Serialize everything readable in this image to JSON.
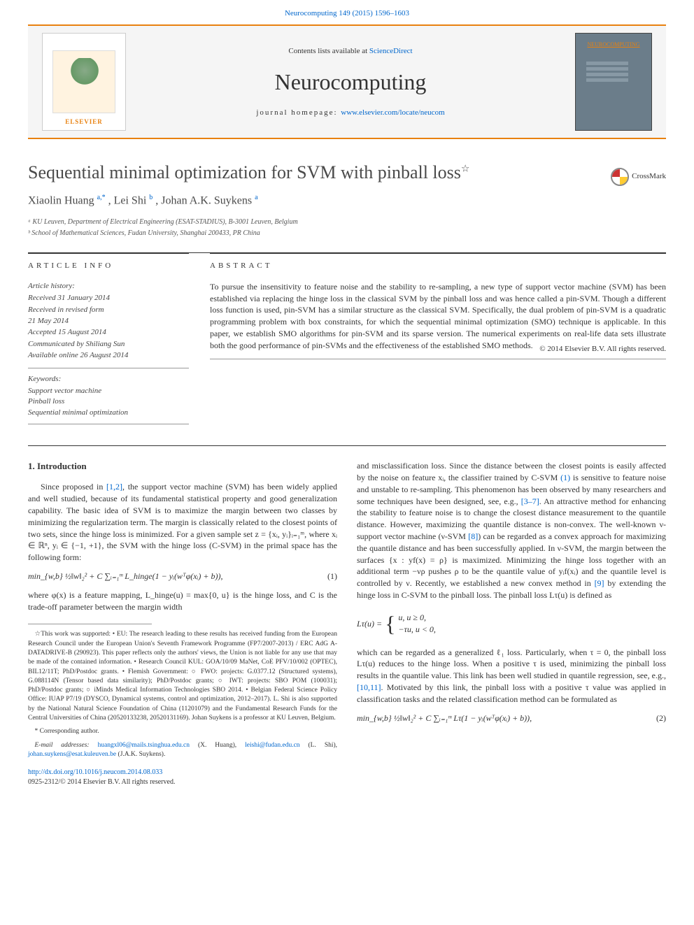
{
  "header_citation": "Neurocomputing 149 (2015) 1596–1603",
  "banner": {
    "contents_prefix": "Contents lists available at ",
    "contents_link": "ScienceDirect",
    "journal": "Neurocomputing",
    "home_label": "journal homepage: ",
    "home_url": "www.elsevier.com/locate/neucom",
    "publisher": "ELSEVIER",
    "cover_label": "NEUROCOMPUTING"
  },
  "title": "Sequential minimal optimization for SVM with pinball loss",
  "title_star": "☆",
  "crossmark": "CrossMark",
  "authors": {
    "a1_name": "Xiaolin Huang",
    "a1_sup": "a,*",
    "a2_name": "Lei Shi",
    "a2_sup": "b",
    "a3_name": "Johan A.K. Suykens",
    "a3_sup": "a"
  },
  "affiliations": {
    "a": "ᵃ KU Leuven, Department of Electrical Engineering (ESAT-STADIUS), B-3001 Leuven, Belgium",
    "b": "ᵇ School of Mathematical Sciences, Fudan University, Shanghai 200433, PR China"
  },
  "article_info_label": "article info",
  "history": {
    "hdr": "Article history:",
    "l1": "Received 31 January 2014",
    "l2": "Received in revised form",
    "l3": "21 May 2014",
    "l4": "Accepted 15 August 2014",
    "l5": "Communicated by Shiliang Sun",
    "l6": "Available online 26 August 2014"
  },
  "keywords": {
    "hdr": "Keywords:",
    "k1": "Support vector machine",
    "k2": "Pinball loss",
    "k3": "Sequential minimal optimization"
  },
  "abstract_label": "abstract",
  "abstract_text": "To pursue the insensitivity to feature noise and the stability to re-sampling, a new type of support vector machine (SVM) has been established via replacing the hinge loss in the classical SVM by the pinball loss and was hence called a pin-SVM. Though a different loss function is used, pin-SVM has a similar structure as the classical SVM. Specifically, the dual problem of pin-SVM is a quadratic programming problem with box constraints, for which the sequential minimal optimization (SMO) technique is applicable. In this paper, we establish SMO algorithms for pin-SVM and its sparse version. The numerical experiments on real-life data sets illustrate both the good performance of pin-SVMs and the effectiveness of the established SMO methods.",
  "copyright": "© 2014 Elsevier B.V. All rights reserved.",
  "intro_heading": "1. Introduction",
  "intro": {
    "p1a": "Since proposed in ",
    "r12": "[1,2]",
    "p1b": ", the support vector machine (SVM) has been widely applied and well studied, because of its fundamental statistical property and good generalization capability. The basic idea of SVM is to maximize the margin between two classes by minimizing the regularization term. The margin is classically related to the closest points of two sets, since the hinge loss is minimized. For a given sample set z = {xᵢ, yᵢ}ᵢ₌₁ᵐ, where xᵢ ∈ ℝⁿ, yᵢ ∈ {−1, +1}, the SVM with the hinge loss (C-SVM) in the primal space has the following form:",
    "eq1": "min_{w,b} ½‖w‖₂² + C ∑ᵢ₌₁ᵐ L_hinge(1 − yᵢ(wᵀφ(xᵢ) + b)),",
    "eq1_num": "(1)",
    "p2": "where φ(x) is a feature mapping, L_hinge(u) = max{0, u} is the hinge loss, and C is the trade-off parameter between the margin width",
    "p3a": "and misclassification loss. Since the distance between the closest points is easily affected by the noise on feature xᵢ, the classifier trained by C-SVM ",
    "r_eq1": "(1)",
    "p3b": " is sensitive to feature noise and unstable to re-sampling. This phenomenon has been observed by many researchers and some techniques have been designed, see, e.g., ",
    "r37": "[3–7]",
    "p3c": ". An attractive method for enhancing the stability to feature noise is to change the closest distance measurement to the quantile distance. However, maximizing the quantile distance is non-convex. The well-known ν-support vector machine (ν-SVM ",
    "r8": "[8]",
    "p3d": ") can be regarded as a convex approach for maximizing the quantile distance and has been successfully applied. In ν-SVM, the margin between the surfaces {x : yf(x) = ρ} is maximized. Minimizing the hinge loss together with an additional term −νρ pushes ρ to be the quantile value of yᵢf(xᵢ) and the quantile level is controlled by ν. Recently, we established a new convex method in ",
    "r9": "[9]",
    "p3e": " by extending the hinge loss in C-SVM to the pinball loss. The pinball loss Lτ(u) is defined as",
    "pinball_lhs": "Lτ(u) = ",
    "pinball_c1": "u,       u ≥ 0,",
    "pinball_c2": "−τu,   u < 0,",
    "p4a": "which can be regarded as a generalized ℓ₁ loss. Particularly, when τ = 0, the pinball loss Lτ(u) reduces to the hinge loss. When a positive τ is used, minimizing the pinball loss results in the quantile value. This link has been well studied in quantile regression, see, e.g., ",
    "r1011": "[10,11]",
    "p4b": ". Motivated by this link, the pinball loss with a positive τ value was applied in classification tasks and the related classification method can be formulated as",
    "eq2": "min_{w,b} ½‖w‖₂² + C ∑ᵢ₌₁ᵐ Lτ(1 − yᵢ(wᵀφ(xᵢ) + b)),",
    "eq2_num": "(2)"
  },
  "footnotes": {
    "funding": "☆This work was supported: • EU: The research leading to these results has received funding from the European Research Council under the European Union's Seventh Framework Programme (FP7/2007-2013) / ERC AdG A-DATADRIVE-B (290923). This paper reflects only the authors' views, the Union is not liable for any use that may be made of the contained information. • Research Council KUL: GOA/10/09 MaNet, CoE PFV/10/002 (OPTEC), BIL12/11T; PhD/Postdoc grants. • Flemish Government: ○ FWO: projects: G.0377.12 (Structured systems), G.088114N (Tensor based data similarity); PhD/Postdoc grants; ○ IWT: projects: SBO POM (100031); PhD/Postdoc grants; ○ iMinds Medical Information Technologies SBO 2014. • Belgian Federal Science Policy Office: IUAP P7/19 (DYSCO, Dynamical systems, control and optimization, 2012–2017). L. Shi is also supported by the National Natural Science Foundation of China (11201079) and the Fundamental Research Funds for the Central Universities of China (20520133238, 20520131169). Johan Suykens is a professor at KU Leuven, Belgium.",
    "corr": "* Corresponding author.",
    "emails_label": "E-mail addresses: ",
    "e1": "huangxl06@mails.tsinghua.edu.cn",
    "e1_who": " (X. Huang),",
    "e2": "leishi@fudan.edu.cn",
    "e2_who": " (L. Shi), ",
    "e3": "johan.suykens@esat.kuleuven.be",
    "e3_who": " (J.A.K. Suykens)."
  },
  "doi": {
    "url": "http://dx.doi.org/10.1016/j.neucom.2014.08.033",
    "issn": "0925-2312/© 2014 Elsevier B.V. All rights reserved."
  }
}
